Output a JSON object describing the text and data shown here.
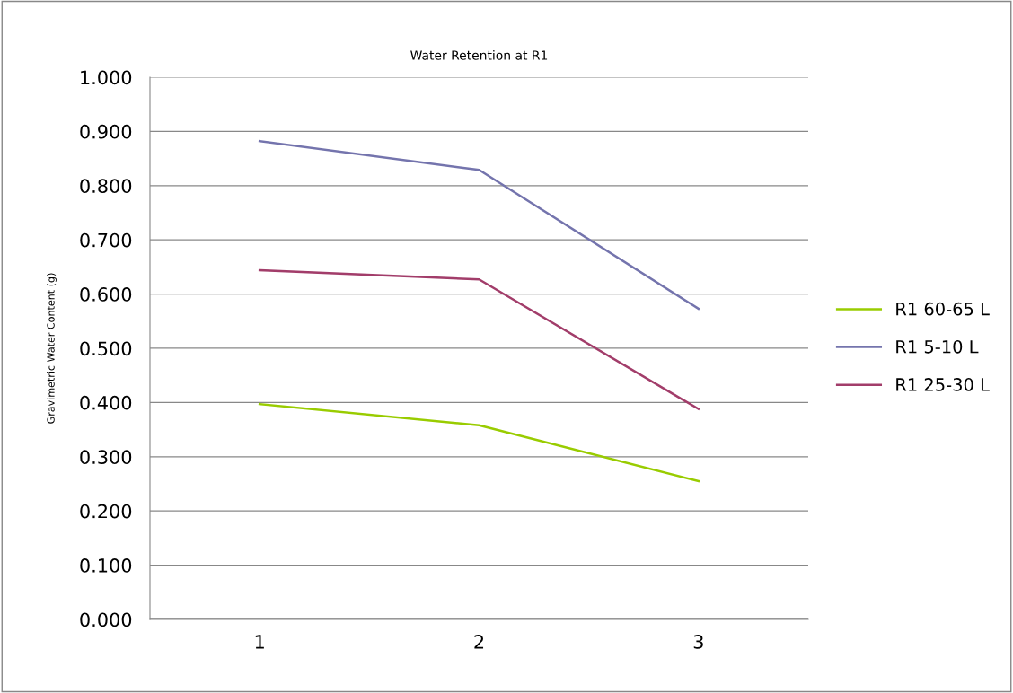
{
  "chart_data": {
    "type": "line",
    "title": "Water Retention at R1",
    "ylabel": "Gravimetric Water Content (g)",
    "categories": [
      "1",
      "2",
      "3"
    ],
    "series": [
      {
        "name": "R1 60-65 L",
        "color": "#99cc00",
        "values": [
          0.397,
          0.358,
          0.255
        ]
      },
      {
        "name": "R1 5-10 L",
        "color": "#7474ad",
        "values": [
          0.882,
          0.829,
          0.573
        ]
      },
      {
        "name": "R1 25-30 L",
        "color": "#a23d6a",
        "values": [
          0.644,
          0.627,
          0.388
        ]
      }
    ],
    "ylim": [
      0,
      1
    ],
    "yticks": [
      {
        "value": 0,
        "label": "0.000"
      },
      {
        "value": 0.1,
        "label": "0.100"
      },
      {
        "value": 0.2,
        "label": "0.200"
      },
      {
        "value": 0.3,
        "label": "0.300"
      },
      {
        "value": 0.4,
        "label": "0.400"
      },
      {
        "value": 0.5,
        "label": "0.500"
      },
      {
        "value": 0.6,
        "label": "0.600"
      },
      {
        "value": 0.7,
        "label": "0.700"
      },
      {
        "value": 0.8,
        "label": "0.800"
      },
      {
        "value": 0.9,
        "label": "0.900"
      },
      {
        "value": 1,
        "label": "1.000"
      }
    ],
    "grid": "y",
    "legend": "right",
    "marker": "none",
    "line_style": "solid"
  }
}
